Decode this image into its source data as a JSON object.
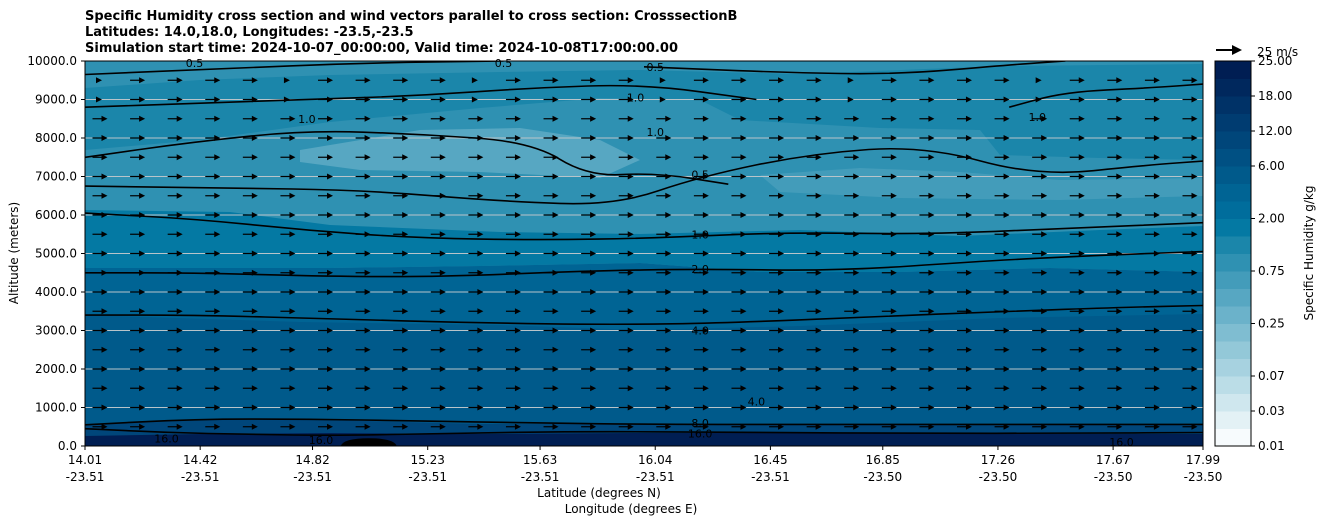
{
  "chart_data": {
    "type": "heatmap",
    "title_lines": [
      "Specific Humidity cross section and wind vectors parallel to cross section: CrosssectionB",
      "Latitudes: 14.0,18.0, Longitudes: -23.5,-23.5",
      "Simulation start time: 2024-10-07_00:00:00, Valid time: 2024-10-08T17:00:00.00"
    ],
    "xlabel_lat": "Latitude (degrees N)",
    "xlabel_lon": "Longitude (degrees E)",
    "ylabel": "Altitude (meters)",
    "x_range": [
      14.01,
      17.99
    ],
    "ylim": [
      0,
      10000
    ],
    "x_ticks": [
      {
        "x": 14.01,
        "lat": "14.01",
        "lon": "-23.51"
      },
      {
        "x": 14.42,
        "lat": "14.42",
        "lon": "-23.51"
      },
      {
        "x": 14.82,
        "lat": "14.82",
        "lon": "-23.51"
      },
      {
        "x": 15.23,
        "lat": "15.23",
        "lon": "-23.51"
      },
      {
        "x": 15.63,
        "lat": "15.63",
        "lon": "-23.51"
      },
      {
        "x": 16.04,
        "lat": "16.04",
        "lon": "-23.51"
      },
      {
        "x": 16.45,
        "lat": "16.45",
        "lon": "-23.51"
      },
      {
        "x": 16.85,
        "lat": "16.85",
        "lon": "-23.50"
      },
      {
        "x": 17.26,
        "lat": "17.26",
        "lon": "-23.50"
      },
      {
        "x": 17.67,
        "lat": "17.67",
        "lon": "-23.50"
      },
      {
        "x": 17.99,
        "lat": "17.99",
        "lon": "-23.50"
      }
    ],
    "y_ticks": [
      {
        "v": 0,
        "label": "0.0"
      },
      {
        "v": 1000,
        "label": "1000.0"
      },
      {
        "v": 2000,
        "label": "2000.0"
      },
      {
        "v": 3000,
        "label": "3000.0"
      },
      {
        "v": 4000,
        "label": "4000.0"
      },
      {
        "v": 5000,
        "label": "5000.0"
      },
      {
        "v": 6000,
        "label": "6000.0"
      },
      {
        "v": 7000,
        "label": "7000.0"
      },
      {
        "v": 8000,
        "label": "8000.0"
      },
      {
        "v": 9000,
        "label": "9000.0"
      },
      {
        "v": 10000,
        "label": "10000.0"
      }
    ],
    "grid": "horizontal",
    "colorbar": {
      "label": "Specific Humidity g/kg",
      "levels": [
        0.01,
        0.02,
        0.03,
        0.05,
        0.07,
        0.1,
        0.15,
        0.25,
        0.35,
        0.5,
        0.75,
        1.0,
        1.5,
        2.0,
        3.0,
        4.0,
        6.0,
        8.0,
        12.0,
        16.0,
        18.0,
        20.0,
        25.0
      ],
      "tick_labels": [
        "0.01",
        "0.03",
        "0.07",
        "0.25",
        "0.75",
        "2.00",
        "6.00",
        "12.00",
        "18.00",
        "25.00"
      ],
      "colors": [
        "#f7fbfd",
        "#e3f1f5",
        "#cfe7ee",
        "#bbdde7",
        "#a7d2e0",
        "#93c8d8",
        "#7fbdd1",
        "#6bb2ca",
        "#57a7c2",
        "#439cba",
        "#2f91b2",
        "#1b86aa",
        "#0479a3",
        "#006d9c",
        "#006494",
        "#005a8b",
        "#005083",
        "#00467a",
        "#003c71",
        "#003267",
        "#00285d",
        "#001e53"
      ]
    },
    "quiver_key": {
      "label": "25 m/s",
      "magnitude": 25
    },
    "wind_vectors": {
      "rows_altitude_m": [
        500,
        1000,
        1500,
        2000,
        2500,
        3000,
        3500,
        4000,
        4500,
        5000,
        5500,
        6000,
        6500,
        7000,
        7500,
        8000,
        8500,
        9000,
        9500
      ],
      "columns": 30,
      "direction": "along section (northward)",
      "typical_speed_ms": 4
    },
    "humidity_field": [
      {
        "name": "boundary-layer",
        "altitude_m": [
          0,
          700
        ],
        "q_gkg": [
          12,
          18
        ]
      },
      {
        "name": "lower-troposphere",
        "altitude_m": [
          700,
          3300
        ],
        "q_gkg": [
          4,
          8
        ]
      },
      {
        "name": "mid-troposphere",
        "altitude_m": [
          3300,
          5000
        ],
        "q_gkg": [
          2,
          4
        ]
      },
      {
        "name": "upper-moist-layer",
        "altitude_m": [
          5000,
          6300
        ],
        "q_gkg": [
          1,
          2
        ]
      },
      {
        "name": "dry-layer",
        "altitude_m": [
          6300,
          8300
        ],
        "q_gkg": [
          0.25,
          0.75
        ]
      },
      {
        "name": "upper-layer",
        "altitude_m": [
          8300,
          10000
        ],
        "q_gkg": [
          0.5,
          1.5
        ]
      }
    ],
    "contours": [
      {
        "level": "16.0",
        "points": [
          [
            14.01,
            450
          ],
          [
            14.3,
            350
          ],
          [
            14.6,
            300
          ],
          [
            14.9,
            270
          ],
          [
            15.3,
            330
          ],
          [
            15.8,
            380
          ],
          [
            16.4,
            350
          ],
          [
            17.0,
            330
          ],
          [
            17.5,
            330
          ],
          [
            17.99,
            350
          ]
        ]
      },
      {
        "level": "8.0",
        "points": [
          [
            14.01,
            550
          ],
          [
            14.4,
            700
          ],
          [
            14.8,
            700
          ],
          [
            15.2,
            650
          ],
          [
            15.6,
            600
          ],
          [
            16.04,
            560
          ],
          [
            16.5,
            560
          ],
          [
            17.0,
            560
          ],
          [
            17.5,
            560
          ],
          [
            17.99,
            560
          ]
        ]
      },
      {
        "level": "4.0",
        "points": [
          [
            14.01,
            3400
          ],
          [
            14.4,
            3400
          ],
          [
            14.9,
            3300
          ],
          [
            15.4,
            3200
          ],
          [
            15.9,
            3150
          ],
          [
            16.3,
            3200
          ],
          [
            16.8,
            3350
          ],
          [
            17.3,
            3500
          ],
          [
            17.7,
            3600
          ],
          [
            17.99,
            3650
          ]
        ]
      },
      {
        "level": "2.0",
        "points": [
          [
            14.01,
            4500
          ],
          [
            14.4,
            4500
          ],
          [
            14.9,
            4400
          ],
          [
            15.3,
            4400
          ],
          [
            15.8,
            4550
          ],
          [
            16.2,
            4600
          ],
          [
            16.7,
            4550
          ],
          [
            17.2,
            4800
          ],
          [
            17.6,
            4950
          ],
          [
            17.99,
            5050
          ]
        ]
      },
      {
        "level": "1.0",
        "points": [
          [
            14.01,
            6050
          ],
          [
            14.4,
            5900
          ],
          [
            14.8,
            5600
          ],
          [
            15.2,
            5400
          ],
          [
            15.63,
            5350
          ],
          [
            16.04,
            5400
          ],
          [
            16.5,
            5550
          ],
          [
            17.0,
            5500
          ],
          [
            17.5,
            5650
          ],
          [
            17.99,
            5800
          ]
        ]
      },
      {
        "level": "0.5",
        "points": [
          [
            14.01,
            6750
          ],
          [
            14.5,
            6700
          ],
          [
            15.0,
            6650
          ],
          [
            15.5,
            6350
          ],
          [
            15.9,
            6250
          ],
          [
            16.2,
            7000
          ],
          [
            16.6,
            7600
          ],
          [
            17.0,
            7800
          ],
          [
            17.4,
            7000
          ],
          [
            17.8,
            7300
          ],
          [
            17.99,
            7400
          ]
        ]
      },
      {
        "level": "1.0",
        "points": [
          [
            14.01,
            7500
          ],
          [
            14.4,
            7900
          ],
          [
            14.8,
            8200
          ],
          [
            15.2,
            8100
          ],
          [
            15.6,
            7900
          ],
          [
            15.8,
            7000
          ],
          [
            16.04,
            7100
          ],
          [
            16.3,
            6800
          ]
        ]
      },
      {
        "level": "1.0",
        "points": [
          [
            14.01,
            8800
          ],
          [
            14.4,
            8900
          ],
          [
            14.8,
            9000
          ],
          [
            15.2,
            9100
          ],
          [
            15.6,
            9300
          ],
          [
            16.0,
            9400
          ],
          [
            16.4,
            9000
          ]
        ]
      },
      {
        "level": "1.0",
        "points": [
          [
            17.3,
            8800
          ],
          [
            17.5,
            9200
          ],
          [
            17.8,
            9300
          ],
          [
            17.99,
            9400
          ]
        ]
      },
      {
        "level": "0.5",
        "points": [
          [
            14.01,
            9650
          ],
          [
            14.5,
            9800
          ],
          [
            15.0,
            9950
          ],
          [
            15.5,
            10000
          ]
        ]
      },
      {
        "level": "0.5",
        "points": [
          [
            16.0,
            9850
          ],
          [
            16.5,
            9700
          ],
          [
            16.9,
            9650
          ],
          [
            17.3,
            9900
          ],
          [
            17.5,
            10000
          ]
        ]
      }
    ],
    "contour_labels": [
      {
        "text": "0.5",
        "x": 14.4,
        "y": 9950
      },
      {
        "text": "0.5",
        "x": 15.5,
        "y": 9950
      },
      {
        "text": "0.5",
        "x": 16.04,
        "y": 9850
      },
      {
        "text": "1.0",
        "x": 14.8,
        "y": 8500
      },
      {
        "text": "1.0",
        "x": 15.97,
        "y": 9050
      },
      {
        "text": "1.0",
        "x": 16.04,
        "y": 8150
      },
      {
        "text": "1.0",
        "x": 17.4,
        "y": 8550
      },
      {
        "text": "0.5",
        "x": 16.2,
        "y": 7050
      },
      {
        "text": "1.0",
        "x": 16.2,
        "y": 5500
      },
      {
        "text": "2.0",
        "x": 16.2,
        "y": 4600
      },
      {
        "text": "4.0",
        "x": 16.2,
        "y": 3000
      },
      {
        "text": "4.0",
        "x": 16.4,
        "y": 1150
      },
      {
        "text": "8.0",
        "x": 16.2,
        "y": 600
      },
      {
        "text": "16.0",
        "x": 16.2,
        "y": 320
      },
      {
        "text": "16.0",
        "x": 14.3,
        "y": 200
      },
      {
        "text": "16.0",
        "x": 14.85,
        "y": 150
      },
      {
        "text": "16.0",
        "x": 17.7,
        "y": 100
      }
    ],
    "terrain": {
      "x_range": [
        14.92,
        15.12
      ],
      "peak_altitude_m": 200
    }
  }
}
